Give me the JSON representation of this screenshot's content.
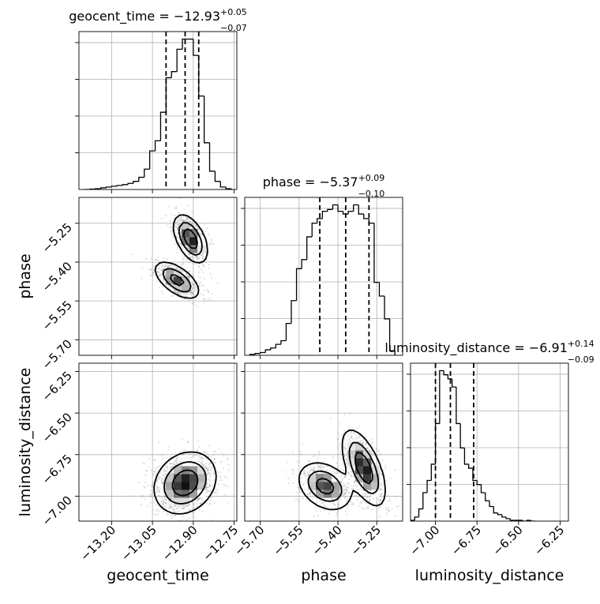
{
  "chart_data": {
    "type": "corner",
    "parameters": [
      "geocent_time",
      "phase",
      "luminosity_distance"
    ],
    "titles": [
      {
        "parameter": "geocent_time",
        "prefix": "geocent_time = ",
        "median": "−12.93",
        "plus": "+0.05",
        "minus": "−0.07"
      },
      {
        "parameter": "phase",
        "prefix": "phase = ",
        "median": "−5.37",
        "plus": "+0.09",
        "minus": "−0.10"
      },
      {
        "parameter": "luminosity_distance",
        "prefix": "luminosity_distance = ",
        "median": "−6.91",
        "plus": "+0.14",
        "minus": "−0.09"
      }
    ],
    "ranges": {
      "geocent_time": [
        -13.32,
        -12.74
      ],
      "phase": [
        -5.76,
        -5.15
      ],
      "luminosity_distance": [
        -7.15,
        -6.2
      ]
    },
    "ticks": {
      "geocent_time": [
        {
          "value": -13.2,
          "label": "−13.20"
        },
        {
          "value": -13.05,
          "label": "−13.05"
        },
        {
          "value": -12.9,
          "label": "−12.90"
        },
        {
          "value": -12.75,
          "label": "−12.75"
        }
      ],
      "phase": [
        {
          "value": -5.7,
          "label": "−5.70"
        },
        {
          "value": -5.55,
          "label": "−5.55"
        },
        {
          "value": -5.4,
          "label": "−5.40"
        },
        {
          "value": -5.25,
          "label": "−5.25"
        }
      ],
      "luminosity_distance": [
        {
          "value": -7.0,
          "label": "−7.00"
        },
        {
          "value": -6.75,
          "label": "−6.75"
        },
        {
          "value": -6.5,
          "label": "−6.50"
        },
        {
          "value": -6.25,
          "label": "−6.25"
        }
      ]
    },
    "quantiles": {
      "geocent_time": [
        -13.0,
        -12.93,
        -12.88
      ],
      "phase": [
        -5.47,
        -5.37,
        -5.28
      ],
      "luminosity_distance": [
        -7.0,
        -6.91,
        -6.77
      ]
    },
    "histograms": {
      "geocent_time": {
        "edges": [
          -13.3,
          -13.28,
          -13.26,
          -13.24,
          -13.22,
          -13.2,
          -13.18,
          -13.16,
          -13.14,
          -13.12,
          -13.1,
          -13.08,
          -13.06,
          -13.04,
          -13.02,
          -13.0,
          -12.98,
          -12.96,
          -12.94,
          -12.92,
          -12.9,
          -12.88,
          -12.86,
          -12.84,
          -12.82,
          -12.8,
          -12.78,
          -12.76
        ],
        "counts": [
          0,
          1,
          2,
          4,
          6,
          8,
          10,
          12,
          15,
          20,
          30,
          50,
          95,
          120,
          190,
          275,
          290,
          345,
          370,
          370,
          330,
          230,
          115,
          45,
          20,
          6,
          2
        ]
      },
      "phase": {
        "edges": [
          -5.74,
          -5.72,
          -5.7,
          -5.68,
          -5.66,
          -5.64,
          -5.62,
          -5.6,
          -5.58,
          -5.56,
          -5.54,
          -5.52,
          -5.5,
          -5.48,
          -5.46,
          -5.44,
          -5.42,
          -5.4,
          -5.38,
          -5.36,
          -5.34,
          -5.32,
          -5.3,
          -5.28,
          -5.26,
          -5.24,
          -5.22,
          -5.2,
          -5.18
        ],
        "counts": [
          1,
          2,
          3,
          6,
          8,
          12,
          16,
          35,
          60,
          95,
          105,
          130,
          145,
          150,
          158,
          160,
          165,
          158,
          155,
          158,
          165,
          155,
          150,
          145,
          80,
          65,
          40,
          5
        ]
      },
      "luminosity_distance": {
        "edges": [
          -7.15,
          -7.125,
          -7.1,
          -7.075,
          -7.05,
          -7.025,
          -7.0,
          -6.975,
          -6.95,
          -6.925,
          -6.9,
          -6.875,
          -6.85,
          -6.825,
          -6.8,
          -6.775,
          -6.75,
          -6.725,
          -6.7,
          -6.675,
          -6.65,
          -6.625,
          -6.6,
          -6.575,
          -6.55,
          -6.525,
          -6.5,
          -6.475,
          -6.45,
          -6.425,
          -6.4
        ],
        "counts": [
          1,
          5,
          15,
          35,
          50,
          70,
          120,
          185,
          180,
          175,
          165,
          120,
          90,
          70,
          65,
          50,
          45,
          35,
          25,
          18,
          10,
          8,
          5,
          3,
          1,
          1,
          1,
          0,
          1,
          0
        ]
      }
    },
    "density_2d": [
      {
        "x": "geocent_time",
        "y": "phase",
        "components": [
          {
            "mx": -12.91,
            "my": -5.31,
            "sx": 0.03,
            "sy": 0.045,
            "rho": -0.5,
            "w": 0.55
          },
          {
            "mx": -12.96,
            "my": -5.47,
            "sx": 0.04,
            "sy": 0.035,
            "rho": -0.6,
            "w": 0.45
          }
        ]
      },
      {
        "x": "geocent_time",
        "y": "luminosity_distance",
        "components": [
          {
            "mx": -12.93,
            "my": -6.92,
            "sx": 0.055,
            "sy": 0.09,
            "rho": 0.2,
            "w": 1.0
          }
        ]
      },
      {
        "x": "phase",
        "y": "luminosity_distance",
        "components": [
          {
            "mx": -5.3,
            "my": -6.83,
            "sx": 0.04,
            "sy": 0.11,
            "rho": -0.6,
            "w": 0.55
          },
          {
            "mx": -5.45,
            "my": -6.94,
            "sx": 0.05,
            "sy": 0.07,
            "rho": -0.3,
            "w": 0.45
          }
        ]
      }
    ],
    "contour_levels": [
      "1-sigma",
      "2-sigma"
    ],
    "colors": {
      "line": "#000000",
      "quantile": "#000000",
      "grid": "#b0b0b0",
      "points": "#808080"
    },
    "grid": true
  }
}
